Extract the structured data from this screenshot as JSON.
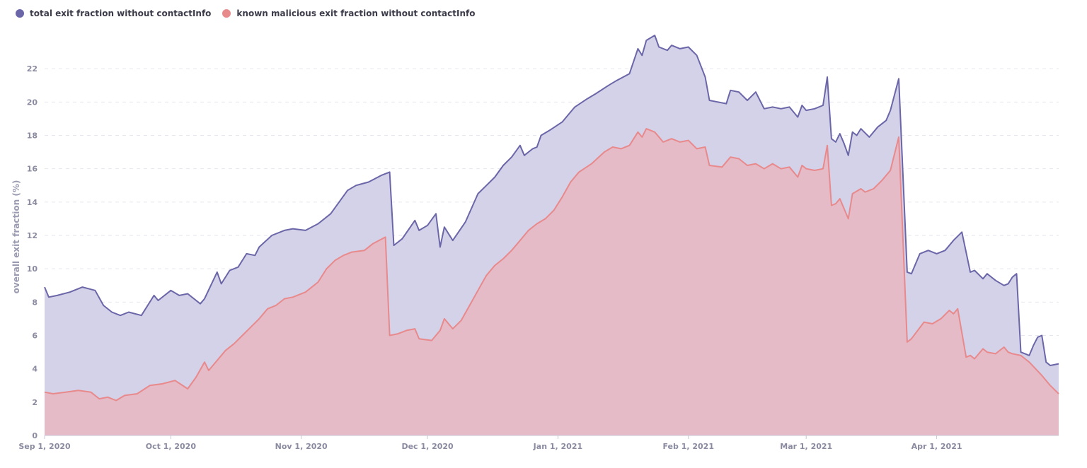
{
  "chart_data": {
    "type": "area",
    "ylabel": "overall exit fraction (%)",
    "xlabel": "",
    "ylim": [
      0,
      24
    ],
    "yticks": [
      0,
      2,
      4,
      6,
      8,
      10,
      12,
      14,
      16,
      18,
      20,
      22
    ],
    "xrange": [
      "2020-09-01",
      "2021-04-30"
    ],
    "xticks": [
      {
        "date": "2020-09-01",
        "label": "Sep 1, 2020"
      },
      {
        "date": "2020-10-01",
        "label": "Oct 1, 2020"
      },
      {
        "date": "2020-11-01",
        "label": "Nov 1, 2020"
      },
      {
        "date": "2020-12-01",
        "label": "Dec 1, 2020"
      },
      {
        "date": "2021-01-01",
        "label": "Jan 1, 2021"
      },
      {
        "date": "2021-02-01",
        "label": "Feb 1, 2021"
      },
      {
        "date": "2021-03-01",
        "label": "Mar 1, 2021"
      },
      {
        "date": "2021-04-01",
        "label": "Apr 1, 2021"
      }
    ],
    "grid": "horizontal-dashed",
    "legend_position": "top-left",
    "series": [
      {
        "name": "total exit fraction without contactInfo",
        "color": "#6b66a8",
        "fill": "#d4d2e8",
        "points": [
          [
            "2020-09-01",
            8.9
          ],
          [
            "2020-09-02",
            8.3
          ],
          [
            "2020-09-04",
            8.4
          ],
          [
            "2020-09-07",
            8.6
          ],
          [
            "2020-09-10",
            8.9
          ],
          [
            "2020-09-13",
            8.7
          ],
          [
            "2020-09-15",
            7.8
          ],
          [
            "2020-09-17",
            7.4
          ],
          [
            "2020-09-19",
            7.2
          ],
          [
            "2020-09-21",
            7.4
          ],
          [
            "2020-09-24",
            7.2
          ],
          [
            "2020-09-27",
            8.4
          ],
          [
            "2020-09-28",
            8.1
          ],
          [
            "2020-10-01",
            8.7
          ],
          [
            "2020-10-03",
            8.4
          ],
          [
            "2020-10-05",
            8.5
          ],
          [
            "2020-10-08",
            7.9
          ],
          [
            "2020-10-09",
            8.2
          ],
          [
            "2020-10-12",
            9.8
          ],
          [
            "2020-10-13",
            9.1
          ],
          [
            "2020-10-15",
            9.9
          ],
          [
            "2020-10-17",
            10.1
          ],
          [
            "2020-10-19",
            10.9
          ],
          [
            "2020-10-21",
            10.8
          ],
          [
            "2020-10-22",
            11.3
          ],
          [
            "2020-10-25",
            12.0
          ],
          [
            "2020-10-28",
            12.3
          ],
          [
            "2020-10-30",
            12.4
          ],
          [
            "2020-11-02",
            12.3
          ],
          [
            "2020-11-05",
            12.7
          ],
          [
            "2020-11-08",
            13.3
          ],
          [
            "2020-11-10",
            14.0
          ],
          [
            "2020-11-12",
            14.7
          ],
          [
            "2020-11-14",
            15.0
          ],
          [
            "2020-11-17",
            15.2
          ],
          [
            "2020-11-20",
            15.6
          ],
          [
            "2020-11-22",
            15.8
          ],
          [
            "2020-11-23",
            11.4
          ],
          [
            "2020-11-25",
            11.8
          ],
          [
            "2020-11-28",
            12.9
          ],
          [
            "2020-11-29",
            12.3
          ],
          [
            "2020-12-01",
            12.6
          ],
          [
            "2020-12-03",
            13.3
          ],
          [
            "2020-12-04",
            11.3
          ],
          [
            "2020-12-05",
            12.5
          ],
          [
            "2020-12-07",
            11.7
          ],
          [
            "2020-12-10",
            12.8
          ],
          [
            "2020-12-13",
            14.5
          ],
          [
            "2020-12-15",
            15.0
          ],
          [
            "2020-12-17",
            15.5
          ],
          [
            "2020-12-19",
            16.2
          ],
          [
            "2020-12-21",
            16.7
          ],
          [
            "2020-12-23",
            17.4
          ],
          [
            "2020-12-24",
            16.8
          ],
          [
            "2020-12-26",
            17.2
          ],
          [
            "2020-12-27",
            17.3
          ],
          [
            "2020-12-28",
            18.0
          ],
          [
            "2020-12-30",
            18.3
          ],
          [
            "2021-01-02",
            18.8
          ],
          [
            "2021-01-05",
            19.7
          ],
          [
            "2021-01-08",
            20.2
          ],
          [
            "2021-01-10",
            20.5
          ],
          [
            "2021-01-13",
            21.0
          ],
          [
            "2021-01-15",
            21.3
          ],
          [
            "2021-01-18",
            21.7
          ],
          [
            "2021-01-20",
            23.2
          ],
          [
            "2021-01-21",
            22.8
          ],
          [
            "2021-01-22",
            23.7
          ],
          [
            "2021-01-24",
            24.0
          ],
          [
            "2021-01-25",
            23.3
          ],
          [
            "2021-01-27",
            23.1
          ],
          [
            "2021-01-28",
            23.4
          ],
          [
            "2021-01-30",
            23.2
          ],
          [
            "2021-02-01",
            23.3
          ],
          [
            "2021-02-03",
            22.8
          ],
          [
            "2021-02-05",
            21.5
          ],
          [
            "2021-02-06",
            20.1
          ],
          [
            "2021-02-08",
            20.0
          ],
          [
            "2021-02-10",
            19.9
          ],
          [
            "2021-02-11",
            20.7
          ],
          [
            "2021-02-13",
            20.6
          ],
          [
            "2021-02-15",
            20.1
          ],
          [
            "2021-02-17",
            20.6
          ],
          [
            "2021-02-19",
            19.6
          ],
          [
            "2021-02-21",
            19.7
          ],
          [
            "2021-02-23",
            19.6
          ],
          [
            "2021-02-25",
            19.7
          ],
          [
            "2021-02-27",
            19.1
          ],
          [
            "2021-02-28",
            19.8
          ],
          [
            "2021-03-01",
            19.5
          ],
          [
            "2021-03-03",
            19.6
          ],
          [
            "2021-03-05",
            19.8
          ],
          [
            "2021-03-06",
            21.5
          ],
          [
            "2021-03-07",
            17.8
          ],
          [
            "2021-03-08",
            17.6
          ],
          [
            "2021-03-09",
            18.1
          ],
          [
            "2021-03-10",
            17.5
          ],
          [
            "2021-03-11",
            16.8
          ],
          [
            "2021-03-12",
            18.2
          ],
          [
            "2021-03-13",
            18.0
          ],
          [
            "2021-03-14",
            18.4
          ],
          [
            "2021-03-16",
            17.9
          ],
          [
            "2021-03-18",
            18.5
          ],
          [
            "2021-03-20",
            18.9
          ],
          [
            "2021-03-21",
            19.5
          ],
          [
            "2021-03-23",
            21.4
          ],
          [
            "2021-03-25",
            9.8
          ],
          [
            "2021-03-26",
            9.7
          ],
          [
            "2021-03-28",
            10.9
          ],
          [
            "2021-03-30",
            11.1
          ],
          [
            "2021-04-01",
            10.9
          ],
          [
            "2021-04-03",
            11.1
          ],
          [
            "2021-04-05",
            11.7
          ],
          [
            "2021-04-07",
            12.2
          ],
          [
            "2021-04-09",
            9.8
          ],
          [
            "2021-04-10",
            9.9
          ],
          [
            "2021-04-12",
            9.4
          ],
          [
            "2021-04-13",
            9.7
          ],
          [
            "2021-04-15",
            9.3
          ],
          [
            "2021-04-17",
            9.0
          ],
          [
            "2021-04-18",
            9.1
          ],
          [
            "2021-04-19",
            9.5
          ],
          [
            "2021-04-20",
            9.7
          ],
          [
            "2021-04-21",
            5.0
          ],
          [
            "2021-04-23",
            4.8
          ],
          [
            "2021-04-24",
            5.4
          ],
          [
            "2021-04-25",
            5.9
          ],
          [
            "2021-04-26",
            6.0
          ],
          [
            "2021-04-27",
            4.4
          ],
          [
            "2021-04-28",
            4.2
          ],
          [
            "2021-04-30",
            4.3
          ]
        ]
      },
      {
        "name": "known malicious exit fraction without contactInfo",
        "color": "#e8898c",
        "fill": "#e6b9c4",
        "points": [
          [
            "2020-09-01",
            2.6
          ],
          [
            "2020-09-03",
            2.5
          ],
          [
            "2020-09-06",
            2.6
          ],
          [
            "2020-09-09",
            2.7
          ],
          [
            "2020-09-12",
            2.6
          ],
          [
            "2020-09-14",
            2.2
          ],
          [
            "2020-09-16",
            2.3
          ],
          [
            "2020-09-18",
            2.1
          ],
          [
            "2020-09-20",
            2.4
          ],
          [
            "2020-09-23",
            2.5
          ],
          [
            "2020-09-26",
            3.0
          ],
          [
            "2020-09-29",
            3.1
          ],
          [
            "2020-10-02",
            3.3
          ],
          [
            "2020-10-05",
            2.8
          ],
          [
            "2020-10-07",
            3.5
          ],
          [
            "2020-10-09",
            4.4
          ],
          [
            "2020-10-10",
            3.9
          ],
          [
            "2020-10-12",
            4.5
          ],
          [
            "2020-10-14",
            5.1
          ],
          [
            "2020-10-16",
            5.5
          ],
          [
            "2020-10-18",
            6.0
          ],
          [
            "2020-10-20",
            6.5
          ],
          [
            "2020-10-22",
            7.0
          ],
          [
            "2020-10-24",
            7.6
          ],
          [
            "2020-10-26",
            7.8
          ],
          [
            "2020-10-28",
            8.2
          ],
          [
            "2020-10-30",
            8.3
          ],
          [
            "2020-11-02",
            8.6
          ],
          [
            "2020-11-05",
            9.2
          ],
          [
            "2020-11-07",
            10.0
          ],
          [
            "2020-11-09",
            10.5
          ],
          [
            "2020-11-11",
            10.8
          ],
          [
            "2020-11-13",
            11.0
          ],
          [
            "2020-11-16",
            11.1
          ],
          [
            "2020-11-18",
            11.5
          ],
          [
            "2020-11-21",
            11.9
          ],
          [
            "2020-11-22",
            6.0
          ],
          [
            "2020-11-24",
            6.1
          ],
          [
            "2020-11-26",
            6.3
          ],
          [
            "2020-11-28",
            6.4
          ],
          [
            "2020-11-29",
            5.8
          ],
          [
            "2020-12-02",
            5.7
          ],
          [
            "2020-12-04",
            6.3
          ],
          [
            "2020-12-05",
            7.0
          ],
          [
            "2020-12-07",
            6.4
          ],
          [
            "2020-12-09",
            6.9
          ],
          [
            "2020-12-11",
            7.8
          ],
          [
            "2020-12-13",
            8.7
          ],
          [
            "2020-12-15",
            9.6
          ],
          [
            "2020-12-17",
            10.2
          ],
          [
            "2020-12-19",
            10.6
          ],
          [
            "2020-12-21",
            11.1
          ],
          [
            "2020-12-23",
            11.7
          ],
          [
            "2020-12-25",
            12.3
          ],
          [
            "2020-12-27",
            12.7
          ],
          [
            "2020-12-29",
            13.0
          ],
          [
            "2020-12-31",
            13.5
          ],
          [
            "2021-01-02",
            14.3
          ],
          [
            "2021-01-04",
            15.2
          ],
          [
            "2021-01-06",
            15.8
          ],
          [
            "2021-01-09",
            16.3
          ],
          [
            "2021-01-12",
            17.0
          ],
          [
            "2021-01-14",
            17.3
          ],
          [
            "2021-01-16",
            17.2
          ],
          [
            "2021-01-18",
            17.4
          ],
          [
            "2021-01-20",
            18.2
          ],
          [
            "2021-01-21",
            17.9
          ],
          [
            "2021-01-22",
            18.4
          ],
          [
            "2021-01-24",
            18.2
          ],
          [
            "2021-01-26",
            17.6
          ],
          [
            "2021-01-28",
            17.8
          ],
          [
            "2021-01-30",
            17.6
          ],
          [
            "2021-02-01",
            17.7
          ],
          [
            "2021-02-03",
            17.2
          ],
          [
            "2021-02-05",
            17.3
          ],
          [
            "2021-02-06",
            16.2
          ],
          [
            "2021-02-09",
            16.1
          ],
          [
            "2021-02-11",
            16.7
          ],
          [
            "2021-02-13",
            16.6
          ],
          [
            "2021-02-15",
            16.2
          ],
          [
            "2021-02-17",
            16.3
          ],
          [
            "2021-02-19",
            16.0
          ],
          [
            "2021-02-21",
            16.3
          ],
          [
            "2021-02-23",
            16.0
          ],
          [
            "2021-02-25",
            16.1
          ],
          [
            "2021-02-27",
            15.5
          ],
          [
            "2021-02-28",
            16.2
          ],
          [
            "2021-03-01",
            16.0
          ],
          [
            "2021-03-03",
            15.9
          ],
          [
            "2021-03-05",
            16.0
          ],
          [
            "2021-03-06",
            17.4
          ],
          [
            "2021-03-07",
            13.8
          ],
          [
            "2021-03-08",
            13.9
          ],
          [
            "2021-03-09",
            14.2
          ],
          [
            "2021-03-11",
            13.0
          ],
          [
            "2021-03-12",
            14.5
          ],
          [
            "2021-03-14",
            14.8
          ],
          [
            "2021-03-15",
            14.6
          ],
          [
            "2021-03-17",
            14.8
          ],
          [
            "2021-03-19",
            15.3
          ],
          [
            "2021-03-21",
            15.9
          ],
          [
            "2021-03-23",
            17.9
          ],
          [
            "2021-03-25",
            5.6
          ],
          [
            "2021-03-26",
            5.8
          ],
          [
            "2021-03-29",
            6.8
          ],
          [
            "2021-03-31",
            6.7
          ],
          [
            "2021-04-02",
            7.0
          ],
          [
            "2021-04-04",
            7.5
          ],
          [
            "2021-04-05",
            7.3
          ],
          [
            "2021-04-06",
            7.6
          ],
          [
            "2021-04-08",
            4.7
          ],
          [
            "2021-04-09",
            4.8
          ],
          [
            "2021-04-10",
            4.6
          ],
          [
            "2021-04-12",
            5.2
          ],
          [
            "2021-04-13",
            5.0
          ],
          [
            "2021-04-15",
            4.9
          ],
          [
            "2021-04-17",
            5.3
          ],
          [
            "2021-04-18",
            5.0
          ],
          [
            "2021-04-19",
            4.9
          ],
          [
            "2021-04-21",
            4.8
          ],
          [
            "2021-04-23",
            4.4
          ],
          [
            "2021-04-26",
            3.6
          ],
          [
            "2021-04-28",
            3.0
          ],
          [
            "2021-04-30",
            2.5
          ]
        ]
      }
    ]
  },
  "legend": {
    "items": [
      {
        "label": "total exit fraction without contactInfo",
        "color": "#6b66a8"
      },
      {
        "label": "known malicious exit fraction without contactInfo",
        "color": "#e8898c"
      }
    ]
  }
}
